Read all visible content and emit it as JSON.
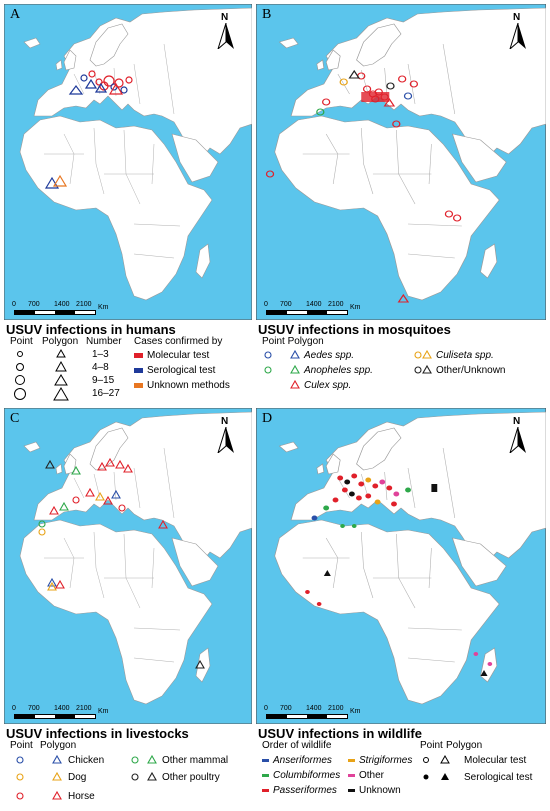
{
  "colors": {
    "ocean": "#5bc5ec",
    "land": "#ffffff",
    "border": "#9a9a9a",
    "molecular": "#e0202a",
    "serological": "#1f3a9a",
    "unknown_method": "#e87722",
    "aedes": "#2a4fa8",
    "anopheles": "#2ea84a",
    "culex": "#e0202a",
    "culiseta": "#e8a317",
    "other_mosquito": "#222222",
    "chicken": "#2a4fa8",
    "dog": "#e8a317",
    "horse": "#e0202a",
    "other_mammal": "#2ea84a",
    "other_poultry": "#222222",
    "anseriformes": "#2a4fa8",
    "columbiformes": "#2ea84a",
    "passeriformes": "#e0202a",
    "strigiformes": "#e8a317",
    "other_bird": "#e0439a",
    "unknown_bird": "#111111"
  },
  "panels": [
    {
      "letter": "A",
      "north": "N",
      "scale": [
        "0",
        "700",
        "1400",
        "2100"
      ],
      "scale_unit": "Km"
    },
    {
      "letter": "B",
      "north": "N",
      "scale": [
        "0",
        "700",
        "1400",
        "2100"
      ],
      "scale_unit": "Km"
    },
    {
      "letter": "C",
      "north": "N",
      "scale": [
        "0",
        "700",
        "1400",
        "2100"
      ],
      "scale_unit": "Km"
    },
    {
      "letter": "D",
      "north": "N",
      "scale": [
        "0",
        "700",
        "1400",
        "2100"
      ],
      "scale_unit": "Km"
    }
  ],
  "humans": {
    "title": "USUV infections in humans",
    "point_label": "Point",
    "polygon_label": "Polygon",
    "number_label": "Number",
    "numbers": [
      "1–3",
      "4–8",
      "9–15",
      "16–27"
    ],
    "confirmed_by": "Cases confirmed by",
    "methods": [
      "Molecular test",
      "Serological test",
      "Unknown methods"
    ]
  },
  "mosquitoes": {
    "title": "USUV infections in mosquitoes",
    "header": "Point Polygon",
    "species": [
      "Aedes spp.",
      "Anopheles spp.",
      "Culex spp.",
      "Culiseta spp.",
      "Other/Unknown"
    ]
  },
  "livestock": {
    "title": "USUV infections in livestocks",
    "point_label": "Point",
    "polygon_label": "Polygon",
    "hosts": [
      "Chicken",
      "Dog",
      "Horse",
      "Other mammal",
      "Other poultry"
    ]
  },
  "wildlife": {
    "title": "USUV infections in wildlife",
    "order_label": "Order of wildlife",
    "orders": [
      "Anseriformes",
      "Columbiformes",
      "Passeriformes",
      "Strigiformes",
      "Other",
      "Unknown"
    ],
    "point_label": "Point",
    "polygon_label": "Polygon",
    "tests": [
      "Molecular test",
      "Serological test"
    ]
  }
}
